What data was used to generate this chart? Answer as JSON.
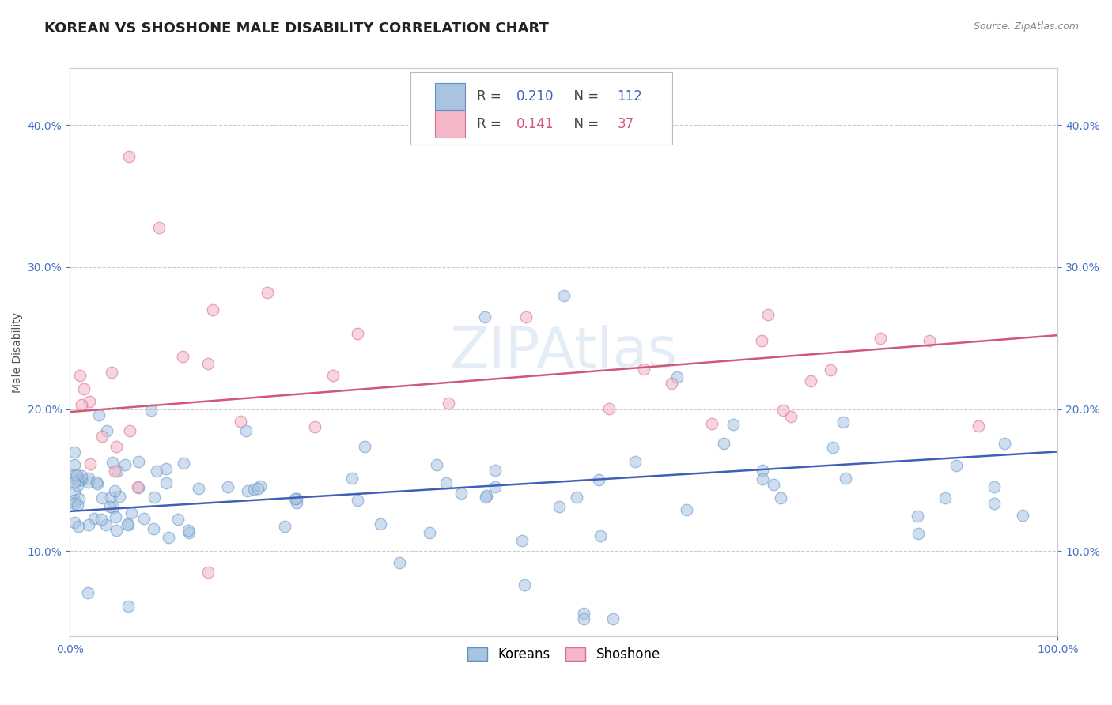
{
  "title": "KOREAN VS SHOSHONE MALE DISABILITY CORRELATION CHART",
  "source": "Source: ZipAtlas.com",
  "ylabel": "Male Disability",
  "xlim": [
    0.0,
    1.0
  ],
  "ylim": [
    0.04,
    0.44
  ],
  "yticks": [
    0.1,
    0.2,
    0.3,
    0.4
  ],
  "ytick_labels": [
    "10.0%",
    "20.0%",
    "30.0%",
    "40.0%"
  ],
  "xtick_labels": [
    "0.0%",
    "100.0%"
  ],
  "korean_color": "#a8c4e0",
  "shoshone_color": "#f4b8c8",
  "korean_edge_color": "#6090c8",
  "shoshone_edge_color": "#d87090",
  "korean_line_color": "#4060b8",
  "shoshone_line_color": "#d05878",
  "korean_R": 0.21,
  "korean_N": 112,
  "shoshone_R": 0.141,
  "shoshone_N": 37,
  "legend_korean_label": "Koreans",
  "legend_shoshone_label": "Shoshone",
  "watermark": "ZIPAtlas",
  "title_fontsize": 13,
  "axis_label_fontsize": 10,
  "tick_fontsize": 10,
  "legend_fontsize": 12,
  "background_color": "#ffffff",
  "grid_color": "#cccccc",
  "korean_line_start_y": 0.128,
  "korean_line_end_y": 0.17,
  "shoshone_line_start_y": 0.198,
  "shoshone_line_end_y": 0.252
}
